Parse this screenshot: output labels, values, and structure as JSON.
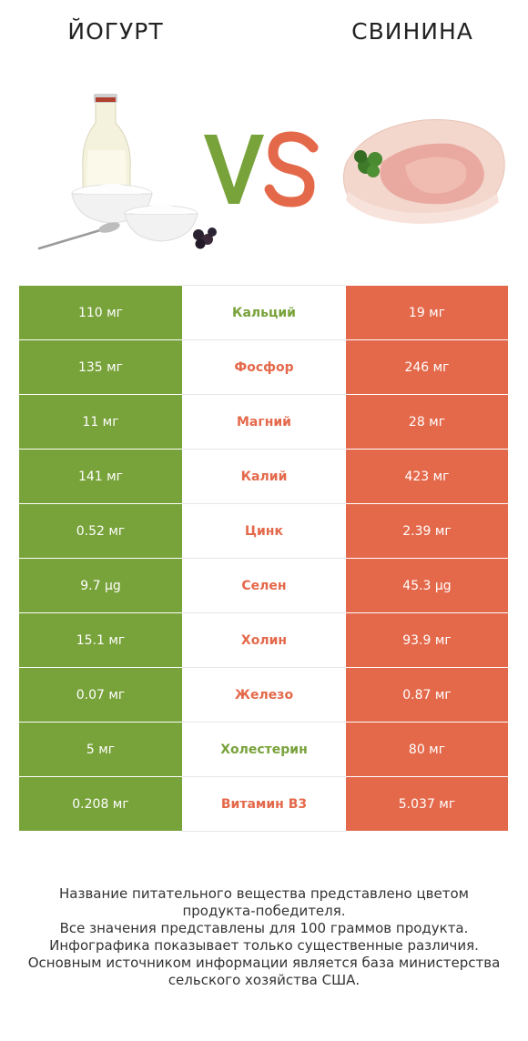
{
  "left_title": "ЙОГУРТ",
  "right_title": "СВИНИНА",
  "vs_label": "VS",
  "colors": {
    "green": "#78a23a",
    "red": "#e4694b"
  },
  "rows": [
    {
      "left": "110 мг",
      "nutrient": "Кальций",
      "right": "19 мг",
      "winner": "left"
    },
    {
      "left": "135 мг",
      "nutrient": "Фосфор",
      "right": "246 мг",
      "winner": "right"
    },
    {
      "left": "11 мг",
      "nutrient": "Магний",
      "right": "28 мг",
      "winner": "right"
    },
    {
      "left": "141 мг",
      "nutrient": "Калий",
      "right": "423 мг",
      "winner": "right"
    },
    {
      "left": "0.52 мг",
      "nutrient": "Цинк",
      "right": "2.39 мг",
      "winner": "right"
    },
    {
      "left": "9.7 µg",
      "nutrient": "Селен",
      "right": "45.3 µg",
      "winner": "right"
    },
    {
      "left": "15.1 мг",
      "nutrient": "Холин",
      "right": "93.9 мг",
      "winner": "right"
    },
    {
      "left": "0.07 мг",
      "nutrient": "Железо",
      "right": "0.87 мг",
      "winner": "right"
    },
    {
      "left": "5 мг",
      "nutrient": "Холестерин",
      "right": "80 мг",
      "winner": "left"
    },
    {
      "left": "0.208 мг",
      "nutrient": "Витамин B3",
      "right": "5.037 мг",
      "winner": "right"
    }
  ],
  "footer": [
    "Название питательного вещества представлено цветом",
    "продукта-победителя.",
    "Все значения представлены для 100 граммов продукта.",
    "Инфографика показывает только существенные различия.",
    "Основным источником информации является база министерства",
    "сельского хозяйства США."
  ]
}
